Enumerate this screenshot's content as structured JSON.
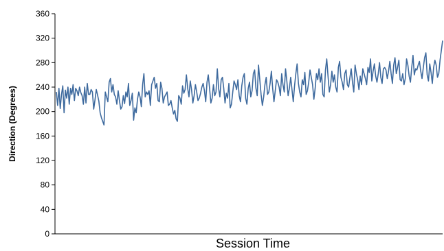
{
  "chart_data": {
    "type": "line",
    "title": "",
    "xlabel": "Session Time",
    "ylabel": "Direction (Degrees)",
    "ylim": [
      0,
      360
    ],
    "yticks": [
      0,
      40,
      80,
      120,
      160,
      200,
      240,
      280,
      320,
      360
    ],
    "ytick_labels": [
      "0",
      "40",
      "80",
      "120",
      "160",
      "200",
      "240",
      "280",
      "320",
      "360"
    ],
    "grid": false,
    "legend": "none",
    "x_ticks_shown": false,
    "series_color": "#3e6a9e",
    "series": [
      {
        "values": [
          232,
          210,
          238,
          205,
          228,
          242,
          198,
          235,
          222,
          240,
          212,
          238,
          228,
          244,
          218,
          238,
          234,
          226,
          240,
          231,
          226,
          212,
          240,
          214,
          246,
          228,
          228,
          236,
          232,
          204,
          219,
          236,
          227,
          217,
          198,
          190,
          184,
          178,
          232,
          224,
          216,
          248,
          254,
          232,
          244,
          228,
          224,
          212,
          234,
          218,
          204,
          208,
          226,
          213,
          232,
          224,
          246,
          210,
          218,
          230,
          186,
          206,
          198,
          220,
          232,
          224,
          208,
          244,
          262,
          224,
          232,
          228,
          234,
          210,
          244,
          250,
          256,
          238,
          246,
          218,
          216,
          248,
          238,
          214,
          224,
          228,
          232,
          210,
          212,
          218,
          206,
          196,
          202,
          188,
          184,
          226,
          222,
          212,
          242,
          230,
          236,
          260,
          238,
          224,
          250,
          236,
          214,
          226,
          244,
          232,
          218,
          222,
          230,
          240,
          246,
          234,
          216,
          248,
          260,
          238,
          214,
          222,
          244,
          226,
          232,
          270,
          238,
          224,
          252,
          256,
          238,
          214,
          230,
          222,
          246,
          206,
          212,
          232,
          250,
          244,
          236,
          252,
          226,
          216,
          242,
          256,
          262,
          222,
          212,
          238,
          248,
          224,
          234,
          262,
          268,
          238,
          226,
          276,
          252,
          228,
          210,
          224,
          244,
          256,
          228,
          232,
          246,
          266,
          238,
          216,
          234,
          252,
          248,
          240,
          226,
          262,
          244,
          232,
          270,
          250,
          226,
          238,
          256,
          236,
          216,
          242,
          262,
          278,
          246,
          232,
          224,
          252,
          244,
          264,
          228,
          234,
          248,
          268,
          256,
          244,
          220,
          238,
          262,
          252,
          270,
          248,
          262,
          228,
          224,
          268,
          286,
          258,
          232,
          244,
          266,
          248,
          260,
          240,
          232,
          272,
          282,
          256,
          248,
          236,
          262,
          268,
          244,
          240,
          256,
          270,
          248,
          232,
          276,
          262,
          252,
          236,
          258,
          244,
          270,
          262,
          254,
          244,
          272,
          264,
          286,
          250,
          266,
          278,
          258,
          248,
          262,
          280,
          256,
          246,
          270,
          272,
          268,
          254,
          266,
          282,
          262,
          246,
          276,
          288,
          262,
          272,
          284,
          252,
          250,
          262,
          244,
          254,
          286,
          276,
          258,
          248,
          272,
          292,
          260,
          270,
          268,
          276,
          282,
          266,
          254,
          272,
          288,
          296,
          260,
          250,
          278,
          264,
          246,
          272,
          284,
          276,
          256,
          262,
          284,
          300,
          316
        ]
      }
    ]
  }
}
